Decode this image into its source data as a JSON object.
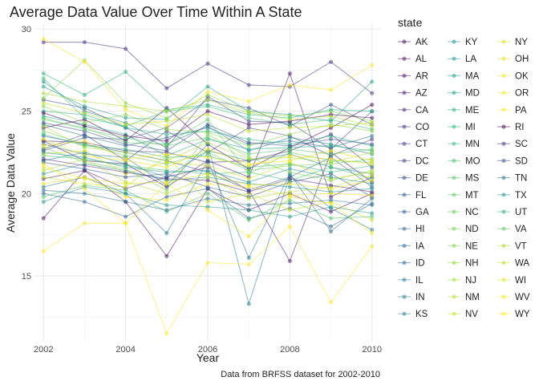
{
  "chart_data": {
    "type": "line",
    "title": "Average Data Value Over Time Within A State",
    "xlabel": "Year",
    "ylabel": "Average Data Value",
    "caption": "Data from BRFSS dataset for 2002-2010",
    "legend_title": "state",
    "legend_position": "right",
    "grid": true,
    "xlim": [
      2001.8,
      2010.2
    ],
    "ylim": [
      11.0,
      30.3
    ],
    "x_ticks": [
      2002,
      2004,
      2006,
      2008,
      2010
    ],
    "y_ticks": [
      15,
      20,
      25,
      30
    ],
    "x": [
      2002,
      2003,
      2004,
      2005,
      2006,
      2007,
      2008,
      2009,
      2010
    ],
    "series": [
      {
        "name": "AK",
        "color": "#440154",
        "values": [
          24.0,
          24.5,
          23.2,
          25.2,
          23.0,
          21.5,
          22.8,
          24.0,
          25.4
        ]
      },
      {
        "name": "AL",
        "color": "#460B5E",
        "values": [
          18.5,
          21.4,
          19.5,
          16.2,
          20.3,
          19.0,
          20.0,
          18.9,
          20.0
        ]
      },
      {
        "name": "AR",
        "color": "#481467",
        "values": [
          23.2,
          22.0,
          21.8,
          20.4,
          22.0,
          21.0,
          27.3,
          19.8,
          21.0
        ]
      },
      {
        "name": "AZ",
        "color": "#481D6F",
        "values": [
          20.9,
          21.4,
          20.3,
          21.0,
          21.6,
          20.2,
          15.9,
          22.5,
          20.7
        ]
      },
      {
        "name": "CA",
        "color": "#472777",
        "values": [
          23.2,
          23.1,
          22.6,
          22.5,
          21.9,
          22.0,
          22.6,
          23.6,
          21.6
        ]
      },
      {
        "name": "CO",
        "color": "#45307D",
        "values": [
          29.2,
          29.2,
          28.8,
          26.4,
          27.9,
          26.6,
          26.5,
          28.0,
          26.1
        ]
      },
      {
        "name": "CT",
        "color": "#423A82",
        "values": [
          22.7,
          23.6,
          22.0,
          23.8,
          22.5,
          24.0,
          23.5,
          22.3,
          23.3
        ]
      },
      {
        "name": "DC",
        "color": "#3E4487",
        "values": [
          25.7,
          25.2,
          24.0,
          22.8,
          25.9,
          24.4,
          24.3,
          22.7,
          25.0
        ]
      },
      {
        "name": "DE",
        "color": "#3A4C89",
        "values": [
          22.6,
          23.4,
          23.3,
          24.0,
          25.7,
          25.2,
          24.1,
          25.4,
          24.2
        ]
      },
      {
        "name": "FL",
        "color": "#36548C",
        "values": [
          21.9,
          21.5,
          21.0,
          21.2,
          20.4,
          19.8,
          20.7,
          21.2,
          19.8
        ]
      },
      {
        "name": "GA",
        "color": "#325D8D",
        "values": [
          23.5,
          23.0,
          22.5,
          22.0,
          21.3,
          20.2,
          21.0,
          22.2,
          20.4
        ]
      },
      {
        "name": "HI",
        "color": "#2F648E",
        "values": [
          20.0,
          19.5,
          18.6,
          19.8,
          20.3,
          18.5,
          19.1,
          18.0,
          19.4
        ]
      },
      {
        "name": "IA",
        "color": "#2C6C8E",
        "values": [
          24.2,
          23.5,
          22.9,
          23.4,
          24.0,
          23.0,
          23.2,
          22.8,
          23.5
        ]
      },
      {
        "name": "ID",
        "color": "#29738E",
        "values": [
          20.4,
          21.0,
          20.0,
          17.6,
          22.0,
          16.1,
          21.2,
          17.7,
          19.7
        ]
      },
      {
        "name": "IL",
        "color": "#277A8E",
        "values": [
          23.0,
          22.4,
          22.2,
          20.5,
          23.0,
          13.3,
          21.1,
          19.1,
          17.8
        ]
      },
      {
        "name": "IN",
        "color": "#25818E",
        "values": [
          22.0,
          22.5,
          21.8,
          21.0,
          22.6,
          22.0,
          22.4,
          21.6,
          21.2
        ]
      },
      {
        "name": "KS",
        "color": "#23888D",
        "values": [
          26.8,
          25.0,
          24.3,
          23.0,
          24.1,
          22.6,
          23.4,
          23.0,
          22.4
        ]
      },
      {
        "name": "KY",
        "color": "#21908C",
        "values": [
          21.2,
          21.8,
          21.4,
          20.8,
          21.0,
          20.6,
          20.4,
          20.1,
          20.3
        ]
      },
      {
        "name": "LA",
        "color": "#1F978B",
        "values": [
          19.5,
          20.4,
          20.0,
          19.3,
          19.2,
          19.0,
          18.6,
          19.2,
          18.8
        ]
      },
      {
        "name": "MA",
        "color": "#1F9E89",
        "values": [
          26.5,
          25.3,
          24.6,
          24.5,
          26.5,
          25.0,
          24.8,
          24.4,
          26.8
        ]
      },
      {
        "name": "MD",
        "color": "#22A584",
        "values": [
          24.7,
          24.2,
          23.6,
          22.3,
          23.3,
          22.7,
          22.8,
          22.9,
          22.6
        ]
      },
      {
        "name": "ME",
        "color": "#26AD81",
        "values": [
          25.0,
          24.8,
          24.0,
          23.6,
          23.8,
          23.3,
          23.0,
          23.5,
          22.9
        ]
      },
      {
        "name": "MI",
        "color": "#2DB37B",
        "values": [
          23.6,
          22.9,
          22.7,
          22.2,
          22.3,
          21.6,
          21.8,
          21.3,
          21.7
        ]
      },
      {
        "name": "MN",
        "color": "#37B977",
        "values": [
          27.0,
          24.6,
          24.1,
          25.0,
          25.3,
          24.6,
          24.2,
          24.5,
          23.9
        ]
      },
      {
        "name": "MO",
        "color": "#41BE71",
        "values": [
          22.3,
          22.1,
          21.7,
          21.4,
          21.2,
          21.3,
          20.8,
          21.6,
          20.9
        ]
      },
      {
        "name": "MS",
        "color": "#4DC36B",
        "values": [
          19.8,
          20.5,
          20.2,
          18.9,
          20.0,
          18.4,
          19.6,
          18.5,
          18.6
        ]
      },
      {
        "name": "MT",
        "color": "#5AC864",
        "values": [
          24.5,
          24.0,
          23.1,
          23.0,
          24.5,
          21.2,
          22.5,
          22.0,
          21.9
        ]
      },
      {
        "name": "NC",
        "color": "#67CC5C",
        "values": [
          23.8,
          23.0,
          22.3,
          21.8,
          22.5,
          21.4,
          21.7,
          21.8,
          22.1
        ]
      },
      {
        "name": "ND",
        "color": "#76D054",
        "values": [
          22.8,
          21.9,
          21.5,
          20.2,
          23.6,
          22.2,
          21.3,
          20.8,
          21.4
        ]
      },
      {
        "name": "NE",
        "color": "#85D44A",
        "values": [
          25.3,
          24.3,
          24.8,
          23.9,
          23.7,
          22.9,
          23.6,
          24.2,
          23.8
        ]
      },
      {
        "name": "NH",
        "color": "#95D840",
        "values": [
          25.8,
          28.1,
          25.5,
          24.6,
          26.0,
          25.0,
          24.7,
          25.0,
          24.4
        ]
      },
      {
        "name": "NJ",
        "color": "#A5DB36",
        "values": [
          24.1,
          22.8,
          22.5,
          22.0,
          23.1,
          22.1,
          22.2,
          21.9,
          22.5
        ]
      },
      {
        "name": "NM",
        "color": "#B4DE2C",
        "values": [
          21.4,
          22.1,
          20.7,
          20.0,
          21.0,
          19.7,
          20.1,
          20.4,
          21.1
        ]
      },
      {
        "name": "NV",
        "color": "#C4E022",
        "values": [
          21.0,
          20.6,
          20.4,
          22.3,
          19.5,
          20.0,
          19.0,
          19.5,
          18.4
        ]
      },
      {
        "name": "NY",
        "color": "#D4E21A",
        "values": [
          22.4,
          22.6,
          21.2,
          21.9,
          21.7,
          20.9,
          21.9,
          20.9,
          21.3
        ]
      },
      {
        "name": "OH",
        "color": "#E2E418",
        "values": [
          23.3,
          22.3,
          22.0,
          21.6,
          22.7,
          21.8,
          22.0,
          22.6,
          22.0
        ]
      },
      {
        "name": "OK",
        "color": "#EFE51C",
        "values": [
          20.6,
          21.0,
          19.8,
          19.6,
          20.6,
          20.4,
          19.9,
          20.0,
          19.9
        ]
      },
      {
        "name": "OR",
        "color": "#F8E621",
        "values": [
          29.4,
          28.0,
          25.1,
          24.1,
          26.2,
          25.6,
          26.6,
          26.3,
          27.8
        ]
      },
      {
        "name": "PA",
        "color": "#FDE725",
        "values": [
          22.9,
          23.2,
          22.1,
          22.4,
          22.2,
          21.7,
          22.3,
          22.1,
          21.8
        ]
      },
      {
        "name": "RI",
        "color": "#440154",
        "values": [
          24.9,
          24.1,
          23.5,
          23.2,
          25.0,
          24.2,
          24.4,
          24.8,
          24.6
        ]
      },
      {
        "name": "SC",
        "color": "#472A7A",
        "values": [
          22.1,
          21.7,
          21.3,
          20.9,
          20.8,
          20.1,
          20.9,
          20.5,
          20.1
        ]
      },
      {
        "name": "SD",
        "color": "#3B528B",
        "values": [
          24.3,
          23.8,
          23.0,
          22.6,
          24.2,
          23.1,
          22.9,
          23.3,
          23.0
        ]
      },
      {
        "name": "TN",
        "color": "#2C728E",
        "values": [
          20.2,
          20.0,
          19.5,
          19.0,
          19.7,
          19.3,
          19.4,
          19.6,
          19.3
        ]
      },
      {
        "name": "TX",
        "color": "#21908C",
        "values": [
          22.5,
          22.2,
          21.6,
          21.3,
          21.4,
          20.7,
          21.5,
          21.0,
          20.6
        ]
      },
      {
        "name": "UT",
        "color": "#27AD81",
        "values": [
          27.3,
          26.0,
          27.4,
          25.1,
          25.4,
          24.8,
          24.6,
          25.1,
          25.0
        ]
      },
      {
        "name": "VA",
        "color": "#5DC863",
        "values": [
          24.6,
          23.9,
          23.4,
          22.9,
          23.4,
          22.4,
          22.7,
          22.4,
          22.7
        ]
      },
      {
        "name": "VT",
        "color": "#AADC32",
        "values": [
          26.1,
          25.6,
          25.3,
          25.0,
          25.7,
          24.9,
          24.5,
          24.7,
          24.1
        ]
      },
      {
        "name": "WA",
        "color": "#C2DF23",
        "values": [
          25.5,
          24.9,
          24.2,
          24.4,
          24.8,
          23.8,
          24.0,
          24.1,
          24.3
        ]
      },
      {
        "name": "WI",
        "color": "#E3E418",
        "values": [
          21.6,
          20.9,
          20.6,
          20.7,
          21.2,
          20.5,
          20.6,
          20.3,
          20.8
        ]
      },
      {
        "name": "WV",
        "color": "#F1E51D",
        "values": [
          21.8,
          20.3,
          18.2,
          20.6,
          19.0,
          17.4,
          19.8,
          19.4,
          17.6
        ]
      },
      {
        "name": "WY",
        "color": "#FDE725",
        "values": [
          16.5,
          18.2,
          18.2,
          11.5,
          15.8,
          15.7,
          18.0,
          13.4,
          16.8
        ]
      }
    ]
  }
}
